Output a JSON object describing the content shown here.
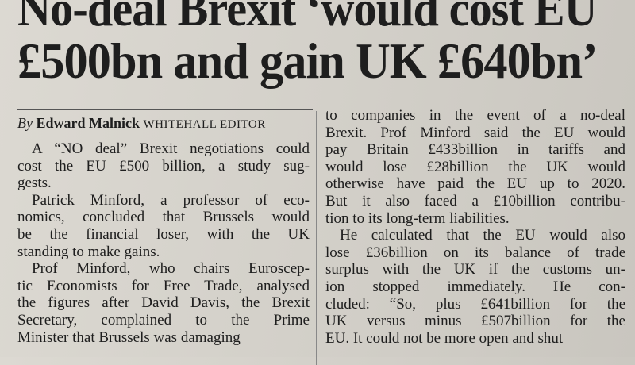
{
  "headline": {
    "lines": [
      "No-deal Brexit ‘would cost EU",
      "£500bn and gain UK £640bn’"
    ]
  },
  "byline": {
    "prefix": "By",
    "author": "Edward Malnick",
    "role": "WHITEHALL EDITOR"
  },
  "columns": [
    {
      "paragraphs": [
        {
          "lines": [
            "A “NO deal” Brexit negotiations could",
            "cost the EU £500 billion, a study sug-",
            "gests."
          ]
        },
        {
          "lines": [
            "Patrick Minford, a professor of eco-",
            "nomics, concluded that Brussels would",
            "be the financial loser, with the UK",
            "standing to make gains."
          ]
        },
        {
          "lines": [
            "Prof Minford, who chairs Euroscep-",
            "tic Economists for Free Trade, analysed",
            "the figures after David Davis, the Brexit",
            "Secretary, complained to the Prime",
            "Minister that Brussels was damaging"
          ]
        }
      ]
    },
    {
      "paragraphs": [
        {
          "lines": [
            "to companies in the event of a no-deal",
            "Brexit. Prof Minford said the EU would",
            "pay Britain £433billion in tariffs and",
            "would lose £28billion the UK would",
            "otherwise have paid the EU up to 2020.",
            "But it also faced a £10billion contribu-",
            "tion to its long-term liabilities."
          ]
        },
        {
          "lines": [
            "He calculated that the EU would also",
            "lose £36billion on its balance of trade",
            "surplus with the UK if the customs un-",
            "ion stopped immediately. He con-",
            "cluded: “So, plus £641billion for the",
            "UK versus minus £507billion for the",
            "EU. It could not be more open and shut"
          ]
        }
      ]
    }
  ]
}
